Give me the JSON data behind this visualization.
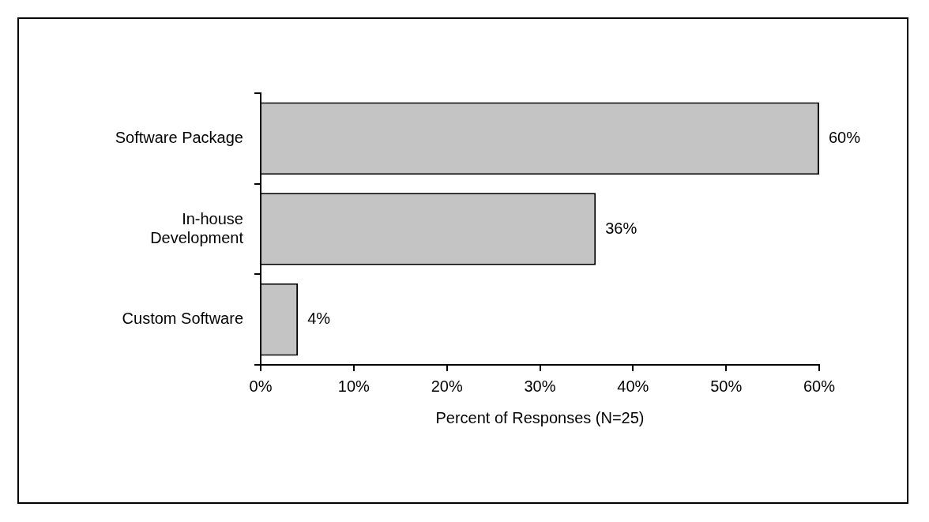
{
  "chart_data": {
    "type": "bar",
    "orientation": "horizontal",
    "xlabel": "Percent of Responses (N=25)",
    "categories": [
      "Software Package",
      "In-house Development",
      "Custom Software"
    ],
    "values": [
      60,
      36,
      4
    ],
    "color": "#c4c4c4",
    "value_labels": [
      "60%",
      "36%",
      "4%"
    ],
    "xlim": [
      0,
      60
    ],
    "xticks": [
      {
        "value": 0,
        "label": "0%"
      },
      {
        "value": 10,
        "label": "10%"
      },
      {
        "value": 20,
        "label": "20%"
      },
      {
        "value": 30,
        "label": "30%"
      },
      {
        "value": 40,
        "label": "40%"
      },
      {
        "value": 50,
        "label": "50%"
      },
      {
        "value": 60,
        "label": "60%"
      }
    ],
    "grid": false,
    "legend": false
  }
}
